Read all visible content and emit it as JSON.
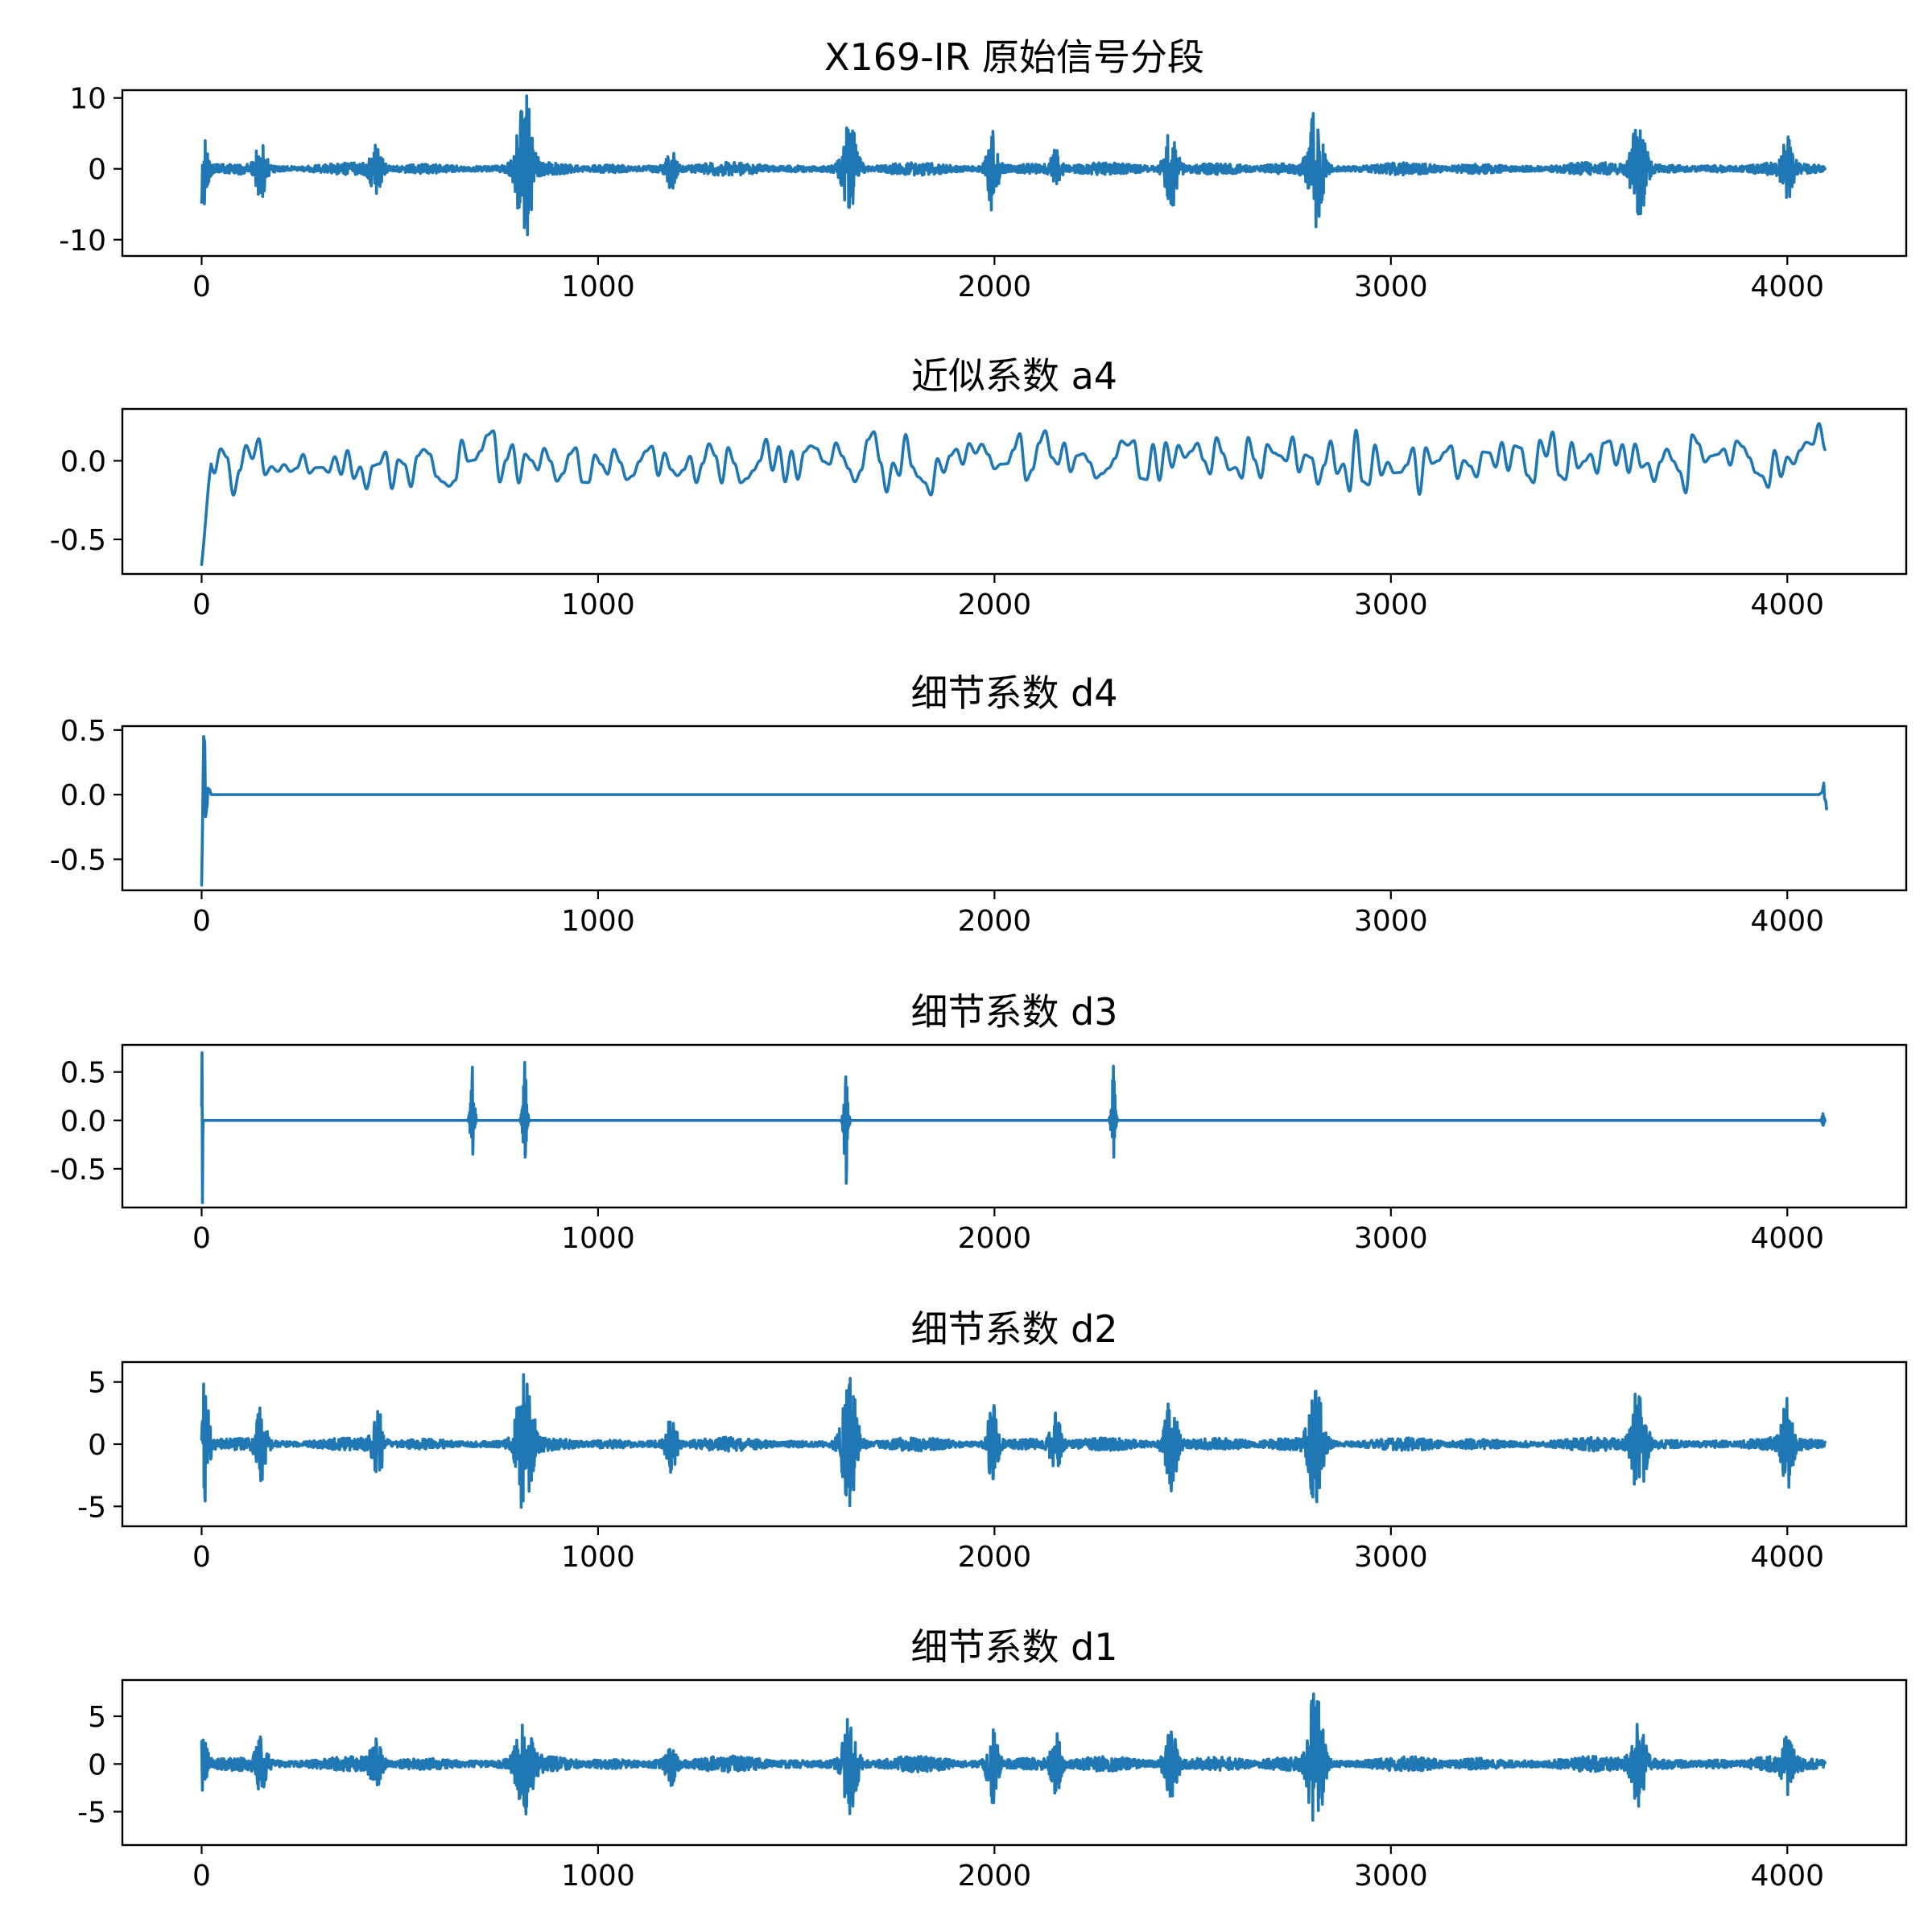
{
  "chart_data": [
    {
      "type": "line",
      "title": "X169-IR 原始信号分段",
      "xlabel": "",
      "ylabel": "",
      "xlim": [
        -200,
        4300
      ],
      "ylim": [
        -12.3,
        11.1
      ],
      "xticks": [
        0,
        1000,
        2000,
        3000,
        4000
      ],
      "xtick_labels": [
        "0",
        "1000",
        "2000",
        "3000",
        "4000"
      ],
      "yticks": [
        10,
        0,
        -10
      ],
      "ytick_labels": [
        "10",
        "0",
        "-10"
      ],
      "grid": false,
      "series": [
        {
          "length": 4096,
          "baseline_amplitude": 1.0,
          "bursts": [
            {
              "x": 0,
              "amp": 6.5,
              "width": 15
            },
            {
              "x": 150,
              "amp": 4.0,
              "width": 15
            },
            {
              "x": 440,
              "amp": 3.6,
              "width": 15
            },
            {
              "x": 815,
              "amp": 11.0,
              "width": 22
            },
            {
              "x": 1185,
              "amp": 2.8,
              "width": 15
            },
            {
              "x": 1635,
              "amp": 6.5,
              "width": 20
            },
            {
              "x": 1995,
              "amp": 6.6,
              "width": 15
            },
            {
              "x": 2155,
              "amp": 2.5,
              "width": 15
            },
            {
              "x": 2445,
              "amp": 5.8,
              "width": 18
            },
            {
              "x": 2810,
              "amp": 8.4,
              "width": 20
            },
            {
              "x": 3625,
              "amp": 7.7,
              "width": 20
            },
            {
              "x": 4000,
              "amp": 4.0,
              "width": 15
            }
          ]
        }
      ]
    },
    {
      "type": "line",
      "title": "近似系数 a4",
      "xlabel": "",
      "ylabel": "",
      "xlim": [
        -200,
        4300
      ],
      "ylim": [
        -0.72,
        0.33
      ],
      "xticks": [
        0,
        1000,
        2000,
        3000,
        4000
      ],
      "xtick_labels": [
        "0",
        "1000",
        "2000",
        "3000",
        "4000"
      ],
      "yticks": [
        0.0,
        -0.5
      ],
      "ytick_labels": [
        "0.0",
        "-0.5"
      ],
      "grid": false,
      "series": [
        {
          "length": 4096,
          "start_value": -0.66,
          "oscillation_amplitude": 0.22,
          "peak_max": 0.29,
          "peak_min": -0.27
        }
      ]
    },
    {
      "type": "line",
      "title": "细节系数 d4",
      "xlabel": "",
      "ylabel": "",
      "xlim": [
        -200,
        4300
      ],
      "ylim": [
        -0.74,
        0.53
      ],
      "xticks": [
        0,
        1000,
        2000,
        3000,
        4000
      ],
      "xtick_labels": [
        "0",
        "1000",
        "2000",
        "3000",
        "4000"
      ],
      "yticks": [
        0.5,
        0.0,
        -0.5
      ],
      "ytick_labels": [
        "0.5",
        "0.0",
        "-0.5"
      ],
      "grid": false,
      "series": [
        {
          "points": [
            [
              0,
              -0.7
            ],
            [
              2,
              -0.3
            ],
            [
              5,
              0.45
            ],
            [
              8,
              0.4
            ],
            [
              10,
              -0.17
            ],
            [
              14,
              -0.08
            ],
            [
              16,
              0.05
            ],
            [
              20,
              0.04
            ],
            [
              24,
              0.0
            ],
            [
              4080,
              0.0
            ],
            [
              4088,
              0.02
            ],
            [
              4092,
              0.09
            ],
            [
              4094,
              -0.03
            ],
            [
              4097,
              -0.05
            ],
            [
              4099,
              -0.11
            ]
          ]
        }
      ]
    },
    {
      "type": "line",
      "title": "细节系数 d3",
      "xlabel": "",
      "ylabel": "",
      "xlim": [
        -200,
        4300
      ],
      "ylim": [
        -0.9,
        0.78
      ],
      "xticks": [
        0,
        1000,
        2000,
        3000,
        4000
      ],
      "xtick_labels": [
        "0",
        "1000",
        "2000",
        "3000",
        "4000"
      ],
      "yticks": [
        0.5,
        0.0,
        -0.5
      ],
      "ytick_labels": [
        "0.5",
        "0.0",
        "-0.5"
      ],
      "grid": false,
      "series": [
        {
          "length": 4096,
          "bursts": [
            {
              "x": 1,
              "max": 0.7,
              "min": -0.85,
              "width": 3
            },
            {
              "x": 683,
              "max": 0.55,
              "min": -0.35,
              "width": 12
            },
            {
              "x": 815,
              "max": 0.6,
              "min": -0.38,
              "width": 12
            },
            {
              "x": 1625,
              "max": 0.45,
              "min": -0.65,
              "width": 12
            },
            {
              "x": 2300,
              "max": 0.56,
              "min": -0.38,
              "width": 12
            },
            {
              "x": 4090,
              "max": 0.07,
              "min": -0.05,
              "width": 8
            }
          ]
        }
      ]
    },
    {
      "type": "line",
      "title": "细节系数 d2",
      "xlabel": "",
      "ylabel": "",
      "xlim": [
        -200,
        4300
      ],
      "ylim": [
        -6.6,
        6.6
      ],
      "xticks": [
        0,
        1000,
        2000,
        3000,
        4000
      ],
      "xtick_labels": [
        "0",
        "1000",
        "2000",
        "3000",
        "4000"
      ],
      "yticks": [
        5,
        0,
        -5
      ],
      "ytick_labels": [
        "5",
        "0",
        "-5"
      ],
      "grid": false,
      "series": [
        {
          "length": 4096,
          "baseline_amplitude": 0.6,
          "bursts": [
            {
              "x": 5,
              "amp": 5.0,
              "width": 15
            },
            {
              "x": 150,
              "amp": 2.8,
              "width": 15
            },
            {
              "x": 445,
              "amp": 2.6,
              "width": 15
            },
            {
              "x": 815,
              "amp": 6.0,
              "width": 22
            },
            {
              "x": 1185,
              "amp": 2.2,
              "width": 15
            },
            {
              "x": 1635,
              "amp": 5.5,
              "width": 20
            },
            {
              "x": 1995,
              "amp": 3.6,
              "width": 15
            },
            {
              "x": 2155,
              "amp": 2.5,
              "width": 15
            },
            {
              "x": 2445,
              "amp": 3.8,
              "width": 18
            },
            {
              "x": 2810,
              "amp": 5.0,
              "width": 20
            },
            {
              "x": 3625,
              "amp": 5.0,
              "width": 20
            },
            {
              "x": 4000,
              "amp": 3.5,
              "width": 15
            }
          ]
        }
      ]
    },
    {
      "type": "line",
      "title": "细节系数 d1",
      "xlabel": "",
      "ylabel": "",
      "xlim": [
        -200,
        4300
      ],
      "ylim": [
        -8.5,
        8.8
      ],
      "xticks": [
        0,
        1000,
        2000,
        3000,
        4000
      ],
      "xtick_labels": [
        "0",
        "1000",
        "2000",
        "3000",
        "4000"
      ],
      "yticks": [
        5,
        0,
        -5
      ],
      "ytick_labels": [
        "5",
        "0",
        "-5"
      ],
      "grid": false,
      "series": [
        {
          "length": 4096,
          "baseline_amplitude": 0.9,
          "bursts": [
            {
              "x": 0,
              "amp": 3.0,
              "width": 15
            },
            {
              "x": 150,
              "amp": 2.7,
              "width": 15
            },
            {
              "x": 440,
              "amp": 2.4,
              "width": 15
            },
            {
              "x": 815,
              "amp": 5.3,
              "width": 22
            },
            {
              "x": 1185,
              "amp": 2.3,
              "width": 15
            },
            {
              "x": 1635,
              "amp": 5.0,
              "width": 20
            },
            {
              "x": 1995,
              "amp": 4.1,
              "width": 15
            },
            {
              "x": 2155,
              "amp": 3.2,
              "width": 15
            },
            {
              "x": 2445,
              "amp": 3.6,
              "width": 18
            },
            {
              "x": 2810,
              "amp": 8.2,
              "width": 20
            },
            {
              "x": 3625,
              "amp": 4.5,
              "width": 20
            },
            {
              "x": 4000,
              "amp": 2.7,
              "width": 15
            }
          ]
        }
      ]
    }
  ],
  "colors": {
    "series": "#1f77b4",
    "axes": "#000000",
    "background": "#ffffff"
  }
}
